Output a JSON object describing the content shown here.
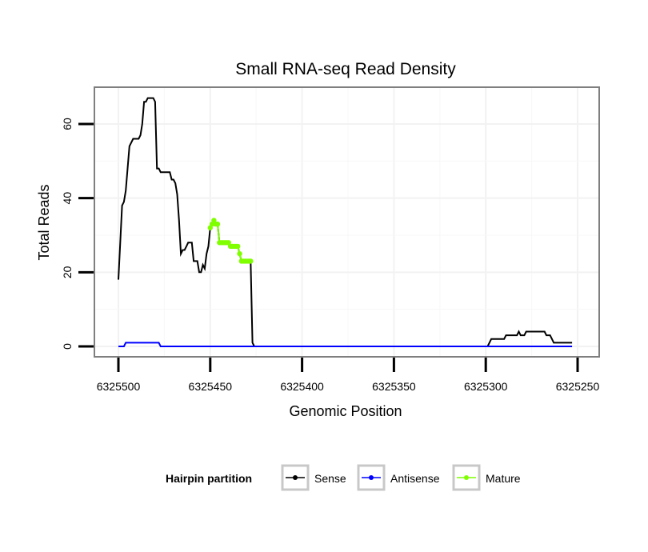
{
  "chart_data": {
    "type": "line",
    "title": "Small RNA-seq Read Density",
    "xlabel": "Genomic Position",
    "ylabel": "Total Reads",
    "x_reversed": true,
    "xlim": [
      6325500,
      6325250
    ],
    "ylim": [
      0,
      70
    ],
    "x_ticks": [
      6325500,
      6325450,
      6325400,
      6325350,
      6325300,
      6325250
    ],
    "x_tick_labels": [
      "6325500",
      "6325450",
      "6325400",
      "6325350",
      "6325300",
      "6325250"
    ],
    "y_ticks": [
      0,
      20,
      40,
      60
    ],
    "y_tick_labels": [
      "0",
      "20",
      "40",
      "60"
    ],
    "grid": true,
    "legend": {
      "title": "Hairpin partition",
      "position": "bottom",
      "entries": [
        "Sense",
        "Antisense",
        "Mature"
      ]
    },
    "series": [
      {
        "name": "Sense",
        "color": "#000000",
        "points": [
          [
            6325500,
            18
          ],
          [
            6325499,
            28
          ],
          [
            6325498,
            38
          ],
          [
            6325497,
            39
          ],
          [
            6325496,
            42
          ],
          [
            6325495,
            48
          ],
          [
            6325494,
            54
          ],
          [
            6325493,
            55
          ],
          [
            6325492,
            56
          ],
          [
            6325491,
            56
          ],
          [
            6325490,
            56
          ],
          [
            6325489,
            56
          ],
          [
            6325488,
            57
          ],
          [
            6325487,
            60
          ],
          [
            6325486,
            66
          ],
          [
            6325485,
            66
          ],
          [
            6325484,
            67
          ],
          [
            6325483,
            67
          ],
          [
            6325482,
            67
          ],
          [
            6325481,
            67
          ],
          [
            6325480,
            66
          ],
          [
            6325479,
            48
          ],
          [
            6325478,
            48
          ],
          [
            6325477,
            47
          ],
          [
            6325476,
            47
          ],
          [
            6325475,
            47
          ],
          [
            6325474,
            47
          ],
          [
            6325473,
            47
          ],
          [
            6325472,
            47
          ],
          [
            6325471,
            45
          ],
          [
            6325470,
            45
          ],
          [
            6325469,
            44
          ],
          [
            6325468,
            41
          ],
          [
            6325467,
            34
          ],
          [
            6325466,
            25
          ],
          [
            6325465,
            26
          ],
          [
            6325464,
            26
          ],
          [
            6325463,
            27
          ],
          [
            6325462,
            28
          ],
          [
            6325461,
            28
          ],
          [
            6325460,
            28
          ],
          [
            6325459,
            23
          ],
          [
            6325458,
            23
          ],
          [
            6325457,
            23
          ],
          [
            6325456,
            20
          ],
          [
            6325455,
            20
          ],
          [
            6325454,
            22
          ],
          [
            6325453,
            21
          ],
          [
            6325452,
            25
          ],
          [
            6325451,
            27
          ],
          [
            6325450,
            32
          ],
          [
            6325449,
            33
          ],
          [
            6325448,
            34
          ],
          [
            6325447,
            33
          ],
          [
            6325446,
            33
          ],
          [
            6325445,
            28
          ],
          [
            6325444,
            28
          ],
          [
            6325443,
            28
          ],
          [
            6325442,
            28
          ],
          [
            6325441,
            28
          ],
          [
            6325440,
            28
          ],
          [
            6325439,
            27
          ],
          [
            6325438,
            27
          ],
          [
            6325437,
            27
          ],
          [
            6325436,
            27
          ],
          [
            6325435,
            27
          ],
          [
            6325434,
            25
          ],
          [
            6325433,
            23
          ],
          [
            6325432,
            23
          ],
          [
            6325431,
            23
          ],
          [
            6325430,
            23
          ],
          [
            6325429,
            23
          ],
          [
            6325428,
            23
          ],
          [
            6325427,
            1
          ],
          [
            6325426,
            0
          ],
          [
            6325300,
            0
          ],
          [
            6325299,
            0
          ],
          [
            6325298,
            1
          ],
          [
            6325297,
            2
          ],
          [
            6325296,
            2
          ],
          [
            6325290,
            2
          ],
          [
            6325289,
            3
          ],
          [
            6325283,
            3
          ],
          [
            6325282,
            4
          ],
          [
            6325281,
            3
          ],
          [
            6325279,
            3
          ],
          [
            6325278,
            4
          ],
          [
            6325268,
            4
          ],
          [
            6325267,
            3
          ],
          [
            6325265,
            3
          ],
          [
            6325264,
            2
          ],
          [
            6325263,
            1
          ],
          [
            6325253,
            1
          ]
        ]
      },
      {
        "name": "Antisense",
        "color": "#0000ff",
        "points": [
          [
            6325500,
            0
          ],
          [
            6325497,
            0
          ],
          [
            6325496,
            1
          ],
          [
            6325478,
            1
          ],
          [
            6325477,
            0
          ],
          [
            6325253,
            0
          ]
        ]
      },
      {
        "name": "Mature",
        "color": "#7fff00",
        "points": [
          [
            6325450,
            32
          ],
          [
            6325449,
            33
          ],
          [
            6325448,
            34
          ],
          [
            6325447,
            33
          ],
          [
            6325446,
            33
          ],
          [
            6325445,
            28
          ],
          [
            6325444,
            28
          ],
          [
            6325443,
            28
          ],
          [
            6325442,
            28
          ],
          [
            6325441,
            28
          ],
          [
            6325440,
            28
          ],
          [
            6325439,
            27
          ],
          [
            6325438,
            27
          ],
          [
            6325437,
            27
          ],
          [
            6325436,
            27
          ],
          [
            6325435,
            27
          ],
          [
            6325434,
            25
          ],
          [
            6325433,
            23
          ],
          [
            6325432,
            23
          ],
          [
            6325431,
            23
          ],
          [
            6325430,
            23
          ],
          [
            6325429,
            23
          ],
          [
            6325428,
            23
          ]
        ]
      }
    ]
  }
}
